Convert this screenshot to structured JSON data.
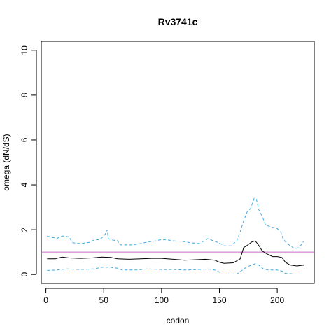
{
  "chart_data": {
    "type": "line",
    "title": "Rv3741c",
    "xlabel": "codon",
    "ylabel": "omega (dN/dS)",
    "xlim": [
      -4,
      232
    ],
    "ylim": [
      -0.4,
      10.4
    ],
    "xticks": [
      0,
      50,
      100,
      150,
      200
    ],
    "yticks": [
      0,
      2,
      4,
      6,
      8,
      10
    ],
    "grid": false,
    "reference_line": {
      "y": 1,
      "color": "#cc66cc"
    },
    "series": [
      {
        "role": "upper",
        "color": "#3fa9e0",
        "style": "dashed",
        "points": [
          [
            1,
            1.72
          ],
          [
            5,
            1.65
          ],
          [
            10,
            1.62
          ],
          [
            14,
            1.72
          ],
          [
            20,
            1.68
          ],
          [
            23,
            1.42
          ],
          [
            30,
            1.38
          ],
          [
            38,
            1.44
          ],
          [
            42,
            1.55
          ],
          [
            46,
            1.55
          ],
          [
            48,
            1.62
          ],
          [
            50,
            1.72
          ],
          [
            52,
            1.85
          ],
          [
            53,
            2.0
          ],
          [
            54,
            1.6
          ],
          [
            56,
            1.55
          ],
          [
            62,
            1.5
          ],
          [
            64,
            1.32
          ],
          [
            75,
            1.32
          ],
          [
            82,
            1.38
          ],
          [
            88,
            1.45
          ],
          [
            95,
            1.5
          ],
          [
            100,
            1.56
          ],
          [
            104,
            1.55
          ],
          [
            110,
            1.5
          ],
          [
            118,
            1.48
          ],
          [
            125,
            1.42
          ],
          [
            132,
            1.38
          ],
          [
            136,
            1.48
          ],
          [
            140,
            1.6
          ],
          [
            144,
            1.52
          ],
          [
            150,
            1.4
          ],
          [
            154,
            1.28
          ],
          [
            160,
            1.28
          ],
          [
            165,
            1.5
          ],
          [
            168,
            1.9
          ],
          [
            171,
            2.4
          ],
          [
            174,
            2.8
          ],
          [
            177,
            2.95
          ],
          [
            180,
            3.4
          ],
          [
            182,
            3.35
          ],
          [
            184,
            2.9
          ],
          [
            187,
            2.6
          ],
          [
            190,
            2.2
          ],
          [
            195,
            2.12
          ],
          [
            200,
            2.05
          ],
          [
            203,
            1.9
          ],
          [
            205,
            1.6
          ],
          [
            208,
            1.4
          ],
          [
            215,
            1.15
          ],
          [
            219,
            1.2
          ],
          [
            223,
            1.5
          ]
        ]
      },
      {
        "role": "estimate",
        "color": "#000000",
        "style": "solid",
        "points": [
          [
            1,
            0.7
          ],
          [
            8,
            0.7
          ],
          [
            14,
            0.78
          ],
          [
            20,
            0.74
          ],
          [
            30,
            0.72
          ],
          [
            40,
            0.74
          ],
          [
            48,
            0.78
          ],
          [
            56,
            0.76
          ],
          [
            62,
            0.7
          ],
          [
            72,
            0.68
          ],
          [
            82,
            0.7
          ],
          [
            92,
            0.72
          ],
          [
            100,
            0.72
          ],
          [
            110,
            0.68
          ],
          [
            120,
            0.64
          ],
          [
            130,
            0.66
          ],
          [
            138,
            0.68
          ],
          [
            146,
            0.64
          ],
          [
            150,
            0.55
          ],
          [
            154,
            0.5
          ],
          [
            162,
            0.52
          ],
          [
            168,
            0.7
          ],
          [
            171,
            1.2
          ],
          [
            174,
            1.3
          ],
          [
            178,
            1.45
          ],
          [
            181,
            1.5
          ],
          [
            184,
            1.3
          ],
          [
            187,
            1.05
          ],
          [
            191,
            0.92
          ],
          [
            196,
            0.8
          ],
          [
            200,
            0.8
          ],
          [
            204,
            0.76
          ],
          [
            207,
            0.55
          ],
          [
            211,
            0.42
          ],
          [
            217,
            0.38
          ],
          [
            223,
            0.42
          ]
        ]
      },
      {
        "role": "lower",
        "color": "#3fa9e0",
        "style": "dashed",
        "points": [
          [
            1,
            0.18
          ],
          [
            10,
            0.2
          ],
          [
            18,
            0.25
          ],
          [
            30,
            0.22
          ],
          [
            42,
            0.25
          ],
          [
            48,
            0.32
          ],
          [
            55,
            0.32
          ],
          [
            62,
            0.28
          ],
          [
            66,
            0.2
          ],
          [
            78,
            0.2
          ],
          [
            88,
            0.25
          ],
          [
            100,
            0.22
          ],
          [
            110,
            0.22
          ],
          [
            120,
            0.2
          ],
          [
            132,
            0.22
          ],
          [
            140,
            0.25
          ],
          [
            148,
            0.18
          ],
          [
            152,
            0.02
          ],
          [
            165,
            0.02
          ],
          [
            170,
            0.2
          ],
          [
            174,
            0.35
          ],
          [
            178,
            0.42
          ],
          [
            181,
            0.48
          ],
          [
            184,
            0.42
          ],
          [
            188,
            0.25
          ],
          [
            192,
            0.2
          ],
          [
            200,
            0.2
          ],
          [
            204,
            0.15
          ],
          [
            207,
            0.05
          ],
          [
            215,
            0.02
          ],
          [
            223,
            0.02
          ]
        ]
      }
    ]
  }
}
